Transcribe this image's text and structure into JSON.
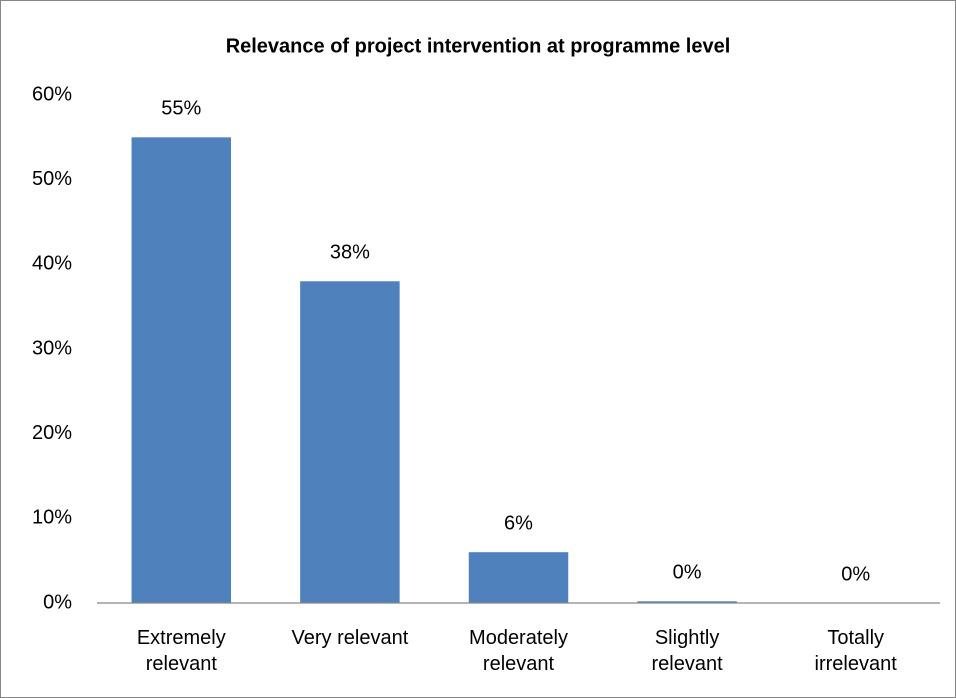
{
  "chart_data": {
    "type": "bar",
    "title": "Relevance of project intervention at programme level",
    "categories": [
      "Extremely relevant",
      "Very relevant",
      "Moderately relevant",
      "Slightly relevant",
      "Totally irrelevant"
    ],
    "values": [
      55,
      38,
      6,
      0.2,
      0
    ],
    "value_labels": [
      "55%",
      "38%",
      "6%",
      "0%",
      "0%"
    ],
    "color": "#4f81bd",
    "ylim": [
      0,
      60
    ],
    "yticks": [
      {
        "value": 0,
        "label": "0%"
      },
      {
        "value": 10,
        "label": "10%"
      },
      {
        "value": 20,
        "label": "20%"
      },
      {
        "value": 30,
        "label": "30%"
      },
      {
        "value": 40,
        "label": "40%"
      },
      {
        "value": 50,
        "label": "50%"
      },
      {
        "value": 60,
        "label": "60%"
      }
    ],
    "grid": false
  }
}
